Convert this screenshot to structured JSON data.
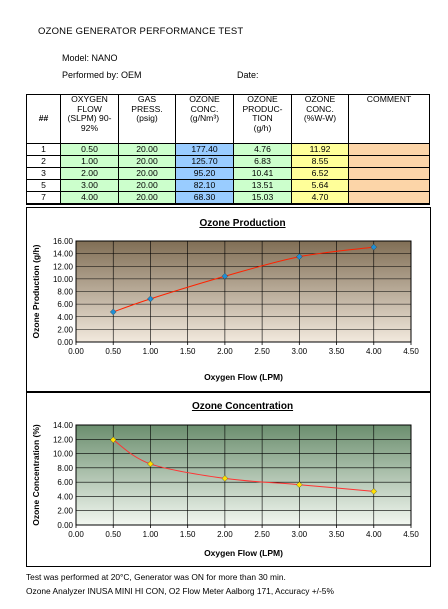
{
  "report": {
    "title": "OZONE GENERATOR PERFORMANCE TEST",
    "model_label": "Model: NANO",
    "performed_label": "Performed by: OEM",
    "date_label": "Date:"
  },
  "table": {
    "headers": {
      "num": "##",
      "flow": [
        "OXYGEN",
        "FLOW",
        "(SLPM) 90-",
        "92%"
      ],
      "press": [
        "GAS",
        "PRESS.",
        "(psig)"
      ],
      "conc": [
        "OZONE",
        "CONC.",
        "(g/Nm³)"
      ],
      "prod": [
        "OZONE",
        "PRODUC-",
        "TION",
        "(g/h)"
      ],
      "pct": [
        "OZONE",
        "CONC.",
        "(%W-W)"
      ],
      "comment": "COMMENT"
    },
    "rows": [
      {
        "num": "1",
        "flow": "0.50",
        "press": "20.00",
        "conc": "177.40",
        "prod": "4.76",
        "pct": "11.92",
        "comment": ""
      },
      {
        "num": "2",
        "flow": "1.00",
        "press": "20.00",
        "conc": "125.70",
        "prod": "6.83",
        "pct": "8.55",
        "comment": ""
      },
      {
        "num": "3",
        "flow": "2.00",
        "press": "20.00",
        "conc": "95.20",
        "prod": "10.41",
        "pct": "6.52",
        "comment": ""
      },
      {
        "num": "5",
        "flow": "3.00",
        "press": "20.00",
        "conc": "82.10",
        "prod": "13.51",
        "pct": "5.64",
        "comment": ""
      },
      {
        "num": "7",
        "flow": "4.00",
        "press": "20.00",
        "conc": "68.30",
        "prod": "15.03",
        "pct": "4.70",
        "comment": ""
      }
    ]
  },
  "chart_data": [
    {
      "type": "line",
      "title": "Ozone Production",
      "xlabel": "Oxygen Flow (LPM)",
      "ylabel": "Ozone Production (g/h)",
      "x": [
        0.5,
        1.0,
        2.0,
        3.0,
        4.0
      ],
      "series": [
        {
          "values": [
            4.76,
            6.83,
            10.41,
            13.51,
            15.03
          ]
        }
      ],
      "xlim": [
        0,
        4.5
      ],
      "ylim": [
        0,
        16
      ],
      "xticks": [
        "0.00",
        "0.50",
        "1.00",
        "1.50",
        "2.00",
        "2.50",
        "3.00",
        "3.50",
        "4.00",
        "4.50"
      ],
      "yticks": [
        "0.00",
        "2.00",
        "4.00",
        "6.00",
        "8.00",
        "10.00",
        "12.00",
        "14.00",
        "16.00"
      ],
      "grid": true,
      "colors": {
        "bg_top": "#806e55",
        "bg_bottom": "#f2e9dd",
        "line": "#ff2200",
        "marker": "#1e8fd6"
      }
    },
    {
      "type": "line",
      "title": "Ozone Concentration",
      "xlabel": "Oxygen Flow (LPM)",
      "ylabel": "Ozone Concentration (%)",
      "x": [
        0.5,
        1.0,
        2.0,
        3.0,
        4.0
      ],
      "series": [
        {
          "values": [
            11.92,
            8.55,
            6.52,
            5.64,
            4.7
          ]
        }
      ],
      "xlim": [
        0,
        4.5
      ],
      "ylim": [
        0,
        14
      ],
      "xticks": [
        "0.00",
        "0.50",
        "1.00",
        "1.50",
        "2.00",
        "2.50",
        "3.00",
        "3.50",
        "4.00",
        "4.50"
      ],
      "yticks": [
        "0.00",
        "2.00",
        "4.00",
        "6.00",
        "8.00",
        "10.00",
        "12.00",
        "14.00"
      ],
      "grid": true,
      "colors": {
        "bg_top": "#6b8e6e",
        "bg_bottom": "#f2f7f0",
        "line": "#ff3333",
        "marker": "#ffe000"
      }
    }
  ],
  "footer": {
    "line1": "Test was performed at 20°C, Generator was ON for more than 30 min.",
    "line2": "Ozone Analyzer INUSA MINI HI CON, O2 Flow Meter Aalborg 171, Accuracy +/-5%"
  }
}
